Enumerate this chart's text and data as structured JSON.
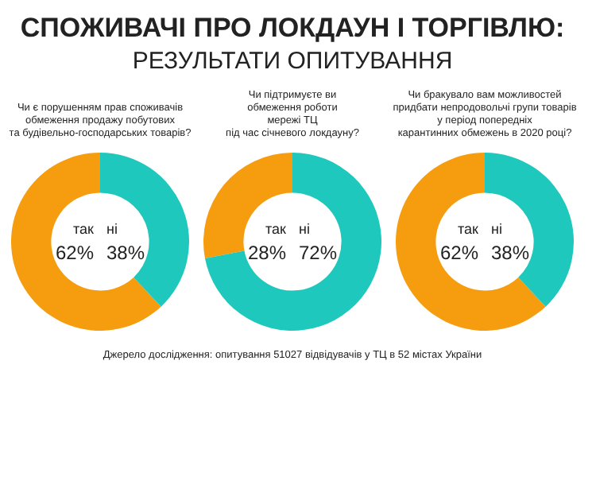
{
  "chart_data": [
    {
      "type": "other",
      "title": "СПОЖИВАЧІ ПРО ЛОКДАУН І ТОРГІВЛЮ:",
      "subtitle": "РЕЗУЛЬТАТИ ОПИТУВАННЯ"
    },
    {
      "type": "donut",
      "title": "Чи є порушенням прав споживачів\nобмеження продажу побутових\nта будівельно-господарських товарів?",
      "categories": [
        "так",
        "ні"
      ],
      "values": [
        62,
        38
      ],
      "value_labels": [
        "62%",
        "38%"
      ],
      "colors": [
        "#f59c0f",
        "#1ec8bc"
      ],
      "data_labels": true,
      "legend": false
    },
    {
      "type": "donut",
      "title": "Чи підтримуєте ви\nобмеження роботи\nмережі ТЦ\nпід час січневого локдауну?",
      "categories": [
        "так",
        "ні"
      ],
      "values": [
        28,
        72
      ],
      "value_labels": [
        "28%",
        "72%"
      ],
      "colors": [
        "#f59c0f",
        "#1ec8bc"
      ],
      "data_labels": true,
      "legend": false
    },
    {
      "type": "donut",
      "title": "Чи бракувало вам можливостей\nпридбати непродовольчі групи товарів\nу період попередніх\nкарантинних обмежень в 2020 році?",
      "categories": [
        "так",
        "ні"
      ],
      "values": [
        62,
        38
      ],
      "value_labels": [
        "62%",
        "38%"
      ],
      "colors": [
        "#f59c0f",
        "#1ec8bc"
      ],
      "data_labels": true,
      "legend": false
    },
    {
      "type": "other",
      "annotations": [
        "Джерело дослідження: опитування 51027 відвідувачів у ТЦ в 52 містах України"
      ]
    }
  ]
}
